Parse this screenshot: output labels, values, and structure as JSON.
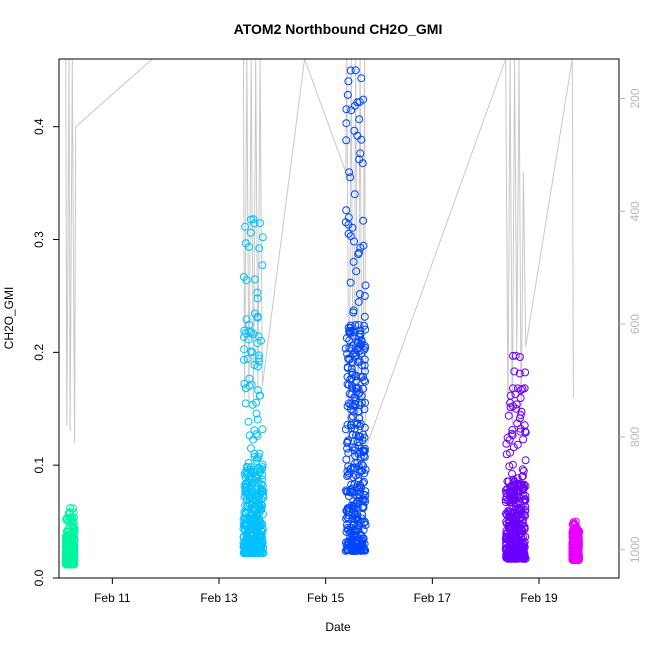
{
  "chart_data": {
    "type": "scatter",
    "title": "ATOM2 Northbound CH2O_GMI",
    "xlabel": "Date",
    "ylabel": "CH2O_GMI",
    "x_ticks": [
      {
        "date": "2017-02-11",
        "label": "Feb 11"
      },
      {
        "date": "2017-02-13",
        "label": "Feb 13"
      },
      {
        "date": "2017-02-15",
        "label": "Feb 15"
      },
      {
        "date": "2017-02-17",
        "label": "Feb 17"
      },
      {
        "date": "2017-02-19",
        "label": "Feb 19"
      }
    ],
    "xlim": [
      "2017-02-10T00:00",
      "2017-02-20T12:00"
    ],
    "ylim": [
      0,
      0.46
    ],
    "y_ticks": [
      "0.0",
      "0.1",
      "0.2",
      "0.3",
      "0.4"
    ],
    "y2_ticks": [
      "200",
      "400",
      "600",
      "800",
      "1000"
    ],
    "y2_range": [
      130,
      1050
    ],
    "grid": false,
    "marker": "open-circle",
    "pressure_color": "#c8c8c8",
    "series": [
      {
        "color": "#00f5a0",
        "x_range": [
          "2017-02-10T03:00",
          "2017-02-10T07:00"
        ],
        "y_min": 0.012,
        "y_max": 0.062,
        "y_core": 0.028
      },
      {
        "color": "#00c0ff",
        "x_range": [
          "2017-02-13T11:00",
          "2017-02-13T20:00"
        ],
        "y_min": 0.022,
        "y_max": 0.318,
        "y_core": 0.07
      },
      {
        "color": "#0045ff",
        "x_range": [
          "2017-02-15T09:00",
          "2017-02-15T18:00"
        ],
        "y_min": 0.024,
        "y_max": 0.45,
        "y_core": 0.15
      },
      {
        "color": "#6a00ff",
        "x_range": [
          "2017-02-18T09:00",
          "2017-02-18T18:00"
        ],
        "y_min": 0.017,
        "y_max": 0.197,
        "y_core": 0.06
      },
      {
        "color": "#e800ff",
        "x_range": [
          "2017-02-19T15:00",
          "2017-02-19T18:00"
        ],
        "y_min": 0.016,
        "y_max": 0.05,
        "y_core": 0.032
      }
    ],
    "pressure_profile": [
      {
        "t": "2017-02-10T03:00",
        "p": 130
      },
      {
        "t": "2017-02-10T03:30",
        "p": 780
      },
      {
        "t": "2017-02-10T04:30",
        "p": 130
      },
      {
        "t": "2017-02-10T05:00",
        "p": 790
      },
      {
        "t": "2017-02-10T06:00",
        "p": 130
      },
      {
        "t": "2017-02-10T07:00",
        "p": 810
      },
      {
        "t": "2017-02-10T07:30",
        "p": 250
      },
      {
        "t": "2017-02-11T18:00",
        "p": 130
      },
      {
        "t": "2017-02-13T11:00",
        "p": 130
      },
      {
        "t": "2017-02-13T11:30",
        "p": 730
      },
      {
        "t": "2017-02-13T12:30",
        "p": 130
      },
      {
        "t": "2017-02-13T13:30",
        "p": 740
      },
      {
        "t": "2017-02-13T14:30",
        "p": 130
      },
      {
        "t": "2017-02-13T15:30",
        "p": 745
      },
      {
        "t": "2017-02-13T16:30",
        "p": 130
      },
      {
        "t": "2017-02-13T17:30",
        "p": 720
      },
      {
        "t": "2017-02-13T18:30",
        "p": 130
      },
      {
        "t": "2017-02-13T19:30",
        "p": 710
      },
      {
        "t": "2017-02-14T14:30",
        "p": 130
      },
      {
        "t": "2017-02-15T09:00",
        "p": 330
      },
      {
        "t": "2017-02-15T09:30",
        "p": 130
      },
      {
        "t": "2017-02-15T10:30",
        "p": 840
      },
      {
        "t": "2017-02-15T11:30",
        "p": 130
      },
      {
        "t": "2017-02-15T12:30",
        "p": 860
      },
      {
        "t": "2017-02-15T13:30",
        "p": 130
      },
      {
        "t": "2017-02-15T14:30",
        "p": 870
      },
      {
        "t": "2017-02-15T15:30",
        "p": 130
      },
      {
        "t": "2017-02-15T16:30",
        "p": 880
      },
      {
        "t": "2017-02-15T17:30",
        "p": 130
      },
      {
        "t": "2017-02-15T18:00",
        "p": 820
      },
      {
        "t": "2017-02-18T09:00",
        "p": 130
      },
      {
        "t": "2017-02-18T10:00",
        "p": 760
      },
      {
        "t": "2017-02-18T11:00",
        "p": 130
      },
      {
        "t": "2017-02-18T12:00",
        "p": 780
      },
      {
        "t": "2017-02-18T13:00",
        "p": 130
      },
      {
        "t": "2017-02-18T14:00",
        "p": 650
      },
      {
        "t": "2017-02-18T15:00",
        "p": 130
      },
      {
        "t": "2017-02-18T16:00",
        "p": 780
      },
      {
        "t": "2017-02-18T17:00",
        "p": 330
      },
      {
        "t": "2017-02-18T18:00",
        "p": 640
      },
      {
        "t": "2017-02-19T15:00",
        "p": 130
      },
      {
        "t": "2017-02-19T15:30",
        "p": 730
      }
    ]
  }
}
